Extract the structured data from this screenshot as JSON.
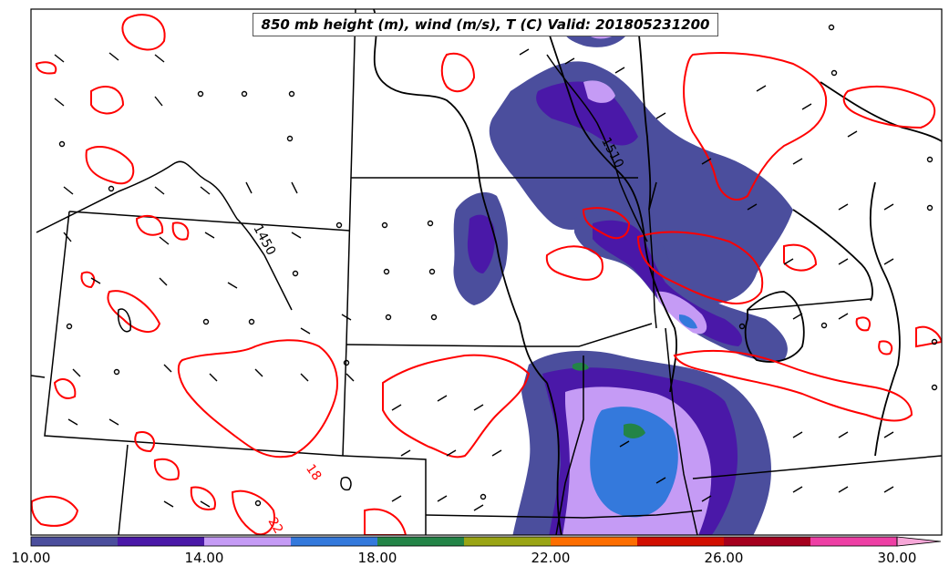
{
  "title": "850 mb height (m), wind (m/s), T (C) Valid: 201805231200",
  "contour_labels": {
    "height_1450": "1450",
    "height_1510": "1510",
    "temp_18": "18",
    "temp_22": "22"
  },
  "colorbar": {
    "tick_labels": [
      "10.00",
      "14.00",
      "18.00",
      "22.00",
      "26.00",
      "30.00"
    ],
    "ticks": [
      10,
      14,
      18,
      22,
      26,
      30
    ],
    "range": [
      10,
      31
    ],
    "extend": "max",
    "bins": [
      {
        "from": 10,
        "to": 12,
        "color": "#4b4e9d"
      },
      {
        "from": 12,
        "to": 14,
        "color": "#4a18a8"
      },
      {
        "from": 14,
        "to": 16,
        "color": "#c59bf5"
      },
      {
        "from": 16,
        "to": 18,
        "color": "#3479dc"
      },
      {
        "from": 18,
        "to": 20,
        "color": "#238447"
      },
      {
        "from": 20,
        "to": 22,
        "color": "#9aa514"
      },
      {
        "from": 22,
        "to": 24,
        "color": "#fd6e00"
      },
      {
        "from": 24,
        "to": 26,
        "color": "#d10e00"
      },
      {
        "from": 26,
        "to": 28,
        "color": "#a5001e"
      },
      {
        "from": 28,
        "to": 30,
        "color": "#ee3fa5"
      }
    ],
    "extend_color": "#f7a7d8"
  },
  "colors": {
    "temperature_contour": "#ff0000",
    "height_contour": "#000000",
    "borders": "#000000"
  }
}
